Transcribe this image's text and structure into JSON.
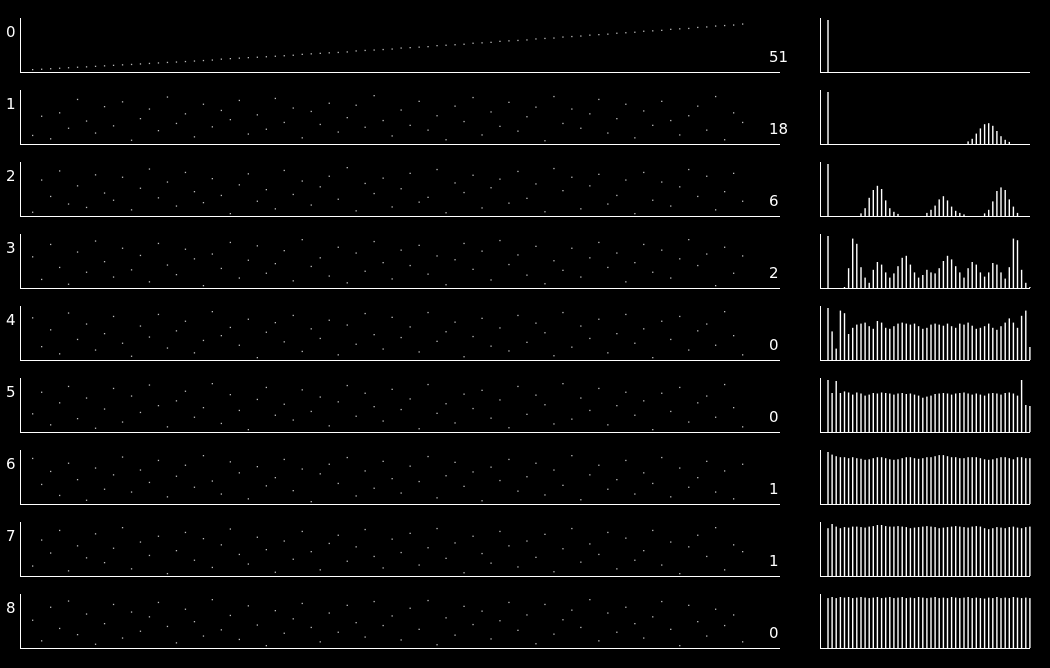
{
  "chart_data": {
    "type": "scatter",
    "description_free": true,
    "rows": [
      {
        "row_label": "0",
        "count_label": "51",
        "scatter": [
          0.02,
          0.03,
          0.04,
          0.05,
          0.06,
          0.07,
          0.08,
          0.09,
          0.1,
          0.11,
          0.12,
          0.13,
          0.14,
          0.15,
          0.16,
          0.17,
          0.18,
          0.19,
          0.2,
          0.21,
          0.22,
          0.24,
          0.25,
          0.26,
          0.27,
          0.28,
          0.29,
          0.3,
          0.31,
          0.32,
          0.34,
          0.35,
          0.36,
          0.37,
          0.38,
          0.39,
          0.41,
          0.42,
          0.43,
          0.44,
          0.45,
          0.47,
          0.48,
          0.49,
          0.5,
          0.52,
          0.53,
          0.54,
          0.55,
          0.57,
          0.58,
          0.59,
          0.61,
          0.62,
          0.63,
          0.64,
          0.66,
          0.67,
          0.68,
          0.7,
          0.71,
          0.72,
          0.74,
          0.75,
          0.76,
          0.78,
          0.79,
          0.8,
          0.82,
          0.83,
          0.84,
          0.86,
          0.87,
          0.88,
          0.9,
          0.91,
          0.93,
          0.94,
          0.95,
          0.97
        ],
        "histogram": [
          1.0,
          0,
          0,
          0,
          0,
          0,
          0,
          0,
          0,
          0,
          0,
          0,
          0,
          0,
          0,
          0,
          0,
          0,
          0,
          0,
          0,
          0,
          0,
          0,
          0,
          0,
          0,
          0,
          0,
          0,
          0,
          0,
          0,
          0,
          0,
          0,
          0,
          0,
          0,
          0,
          0,
          0,
          0,
          0,
          0,
          0,
          0,
          0,
          0,
          0
        ]
      },
      {
        "row_label": "1",
        "count_label": "18",
        "scatter": [
          0.15,
          0.55,
          0.08,
          0.62,
          0.3,
          0.9,
          0.45,
          0.2,
          0.75,
          0.35,
          0.85,
          0.05,
          0.5,
          0.7,
          0.25,
          0.95,
          0.4,
          0.6,
          0.12,
          0.8,
          0.33,
          0.67,
          0.48,
          0.88,
          0.18,
          0.58,
          0.28,
          0.92,
          0.42,
          0.72,
          0.1,
          0.65,
          0.38,
          0.82,
          0.22,
          0.52,
          0.78,
          0.32,
          0.98,
          0.46,
          0.14,
          0.68,
          0.36,
          0.86,
          0.26,
          0.56,
          0.06,
          0.76,
          0.44,
          0.94,
          0.16,
          0.64,
          0.34,
          0.84,
          0.24,
          0.54,
          0.74,
          0.04,
          0.96,
          0.4,
          0.7,
          0.3,
          0.6,
          0.9,
          0.2,
          0.5,
          0.8,
          0.1,
          0.66,
          0.36,
          0.86,
          0.46,
          0.16,
          0.56,
          0.76,
          0.26,
          0.96,
          0.06,
          0.62,
          0.42
        ],
        "histogram": [
          1.0,
          0,
          0,
          0,
          0,
          0,
          0,
          0,
          0,
          0,
          0,
          0,
          0,
          0,
          0,
          0,
          0,
          0,
          0,
          0,
          0,
          0,
          0,
          0,
          0,
          0,
          0,
          0,
          0,
          0,
          0,
          0,
          0,
          0,
          0.05,
          0.1,
          0.2,
          0.3,
          0.38,
          0.4,
          0.35,
          0.25,
          0.15,
          0.08,
          0.04,
          0,
          0,
          0,
          0,
          0
        ]
      },
      {
        "row_label": "2",
        "count_label": "6",
        "scatter": [
          0.05,
          0.72,
          0.38,
          0.91,
          0.22,
          0.6,
          0.15,
          0.83,
          0.45,
          0.3,
          0.78,
          0.1,
          0.55,
          0.95,
          0.35,
          0.68,
          0.18,
          0.88,
          0.48,
          0.25,
          0.75,
          0.4,
          0.02,
          0.62,
          0.85,
          0.28,
          0.52,
          0.12,
          0.92,
          0.42,
          0.7,
          0.2,
          0.58,
          0.8,
          0.32,
          0.98,
          0.08,
          0.65,
          0.44,
          0.76,
          0.16,
          0.54,
          0.86,
          0.26,
          0.36,
          0.94,
          0.04,
          0.66,
          0.46,
          0.82,
          0.14,
          0.56,
          0.74,
          0.24,
          0.9,
          0.34,
          0.64,
          0.06,
          0.96,
          0.5,
          0.78,
          0.12,
          0.6,
          0.84,
          0.22,
          0.4,
          0.72,
          0.02,
          0.88,
          0.3,
          0.68,
          0.18,
          0.58,
          0.94,
          0.38,
          0.8,
          0.1,
          0.48,
          0.86,
          0.28
        ],
        "histogram": [
          1.0,
          0,
          0,
          0,
          0,
          0,
          0,
          0,
          0.05,
          0.15,
          0.35,
          0.5,
          0.58,
          0.52,
          0.3,
          0.15,
          0.08,
          0.04,
          0,
          0,
          0,
          0,
          0,
          0,
          0.06,
          0.12,
          0.2,
          0.32,
          0.38,
          0.3,
          0.18,
          0.1,
          0.06,
          0.03,
          0,
          0,
          0,
          0,
          0.05,
          0.12,
          0.28,
          0.48,
          0.55,
          0.5,
          0.32,
          0.18,
          0.06,
          0,
          0,
          0
        ]
      },
      {
        "row_label": "3",
        "count_label": "2",
        "scatter": [
          0.62,
          0.15,
          0.88,
          0.4,
          0.05,
          0.72,
          0.3,
          0.95,
          0.52,
          0.2,
          0.8,
          0.35,
          0.65,
          0.1,
          0.9,
          0.45,
          0.25,
          0.78,
          0.58,
          0.02,
          0.68,
          0.38,
          0.92,
          0.18,
          0.55,
          0.85,
          0.28,
          0.48,
          0.75,
          0.12,
          0.98,
          0.42,
          0.6,
          0.22,
          0.82,
          0.08,
          0.7,
          0.32,
          0.94,
          0.5,
          0.16,
          0.76,
          0.44,
          0.86,
          0.26,
          0.64,
          0.04,
          0.56,
          0.9,
          0.36,
          0.74,
          0.14,
          0.96,
          0.46,
          0.66,
          0.24,
          0.84,
          0.06,
          0.54,
          0.34,
          0.8,
          0.2,
          0.6,
          0.92,
          0.4,
          0.7,
          0.1,
          0.5,
          0.88,
          0.3,
          0.76,
          0.18,
          0.58,
          0.98,
          0.44,
          0.68,
          0.02,
          0.82,
          0.28,
          0.64
        ],
        "histogram": [
          1.0,
          0,
          0,
          0,
          0.02,
          0.38,
          0.95,
          0.85,
          0.4,
          0.2,
          0.1,
          0.35,
          0.5,
          0.45,
          0.3,
          0.2,
          0.28,
          0.42,
          0.58,
          0.62,
          0.45,
          0.3,
          0.2,
          0.25,
          0.35,
          0.3,
          0.28,
          0.38,
          0.52,
          0.62,
          0.55,
          0.42,
          0.3,
          0.2,
          0.38,
          0.5,
          0.45,
          0.3,
          0.22,
          0.3,
          0.48,
          0.45,
          0.3,
          0.18,
          0.4,
          0.95,
          0.92,
          0.35,
          0.1,
          0.02
        ]
      },
      {
        "row_label": "4",
        "count_label": "0",
        "scatter": [
          0.85,
          0.25,
          0.6,
          0.1,
          0.95,
          0.4,
          0.72,
          0.18,
          0.52,
          0.88,
          0.32,
          0.05,
          0.68,
          0.45,
          0.92,
          0.22,
          0.58,
          0.78,
          0.12,
          0.38,
          0.98,
          0.48,
          0.65,
          0.28,
          0.82,
          0.02,
          0.55,
          0.75,
          0.35,
          0.9,
          0.15,
          0.62,
          0.42,
          0.8,
          0.08,
          0.7,
          0.3,
          0.94,
          0.5,
          0.2,
          0.86,
          0.44,
          0.66,
          0.14,
          0.96,
          0.36,
          0.56,
          0.76,
          0.04,
          0.46,
          0.84,
          0.26,
          0.64,
          0.16,
          0.9,
          0.34,
          0.74,
          0.54,
          0.06,
          0.96,
          0.24,
          0.68,
          0.42,
          0.82,
          0.12,
          0.52,
          0.92,
          0.32,
          0.62,
          0.02,
          0.78,
          0.4,
          0.88,
          0.18,
          0.58,
          0.72,
          0.28,
          0.98,
          0.48,
          0.08
        ],
        "histogram": [
          1.0,
          0.55,
          0.22,
          0.95,
          0.9,
          0.5,
          0.62,
          0.68,
          0.7,
          0.72,
          0.65,
          0.6,
          0.75,
          0.72,
          0.62,
          0.6,
          0.65,
          0.7,
          0.72,
          0.7,
          0.68,
          0.7,
          0.65,
          0.6,
          0.62,
          0.68,
          0.7,
          0.68,
          0.66,
          0.7,
          0.65,
          0.62,
          0.7,
          0.68,
          0.72,
          0.66,
          0.6,
          0.62,
          0.65,
          0.7,
          0.62,
          0.58,
          0.65,
          0.72,
          0.8,
          0.72,
          0.62,
          0.85,
          0.95,
          0.25
        ]
      },
      {
        "row_label": "5",
        "count_label": "0",
        "scatter": [
          0.35,
          0.8,
          0.12,
          0.58,
          0.92,
          0.25,
          0.68,
          0.05,
          0.45,
          0.88,
          0.18,
          0.72,
          0.38,
          0.95,
          0.52,
          0.08,
          0.62,
          0.82,
          0.28,
          0.48,
          0.98,
          0.15,
          0.75,
          0.42,
          0.02,
          0.65,
          0.9,
          0.32,
          0.55,
          0.22,
          0.85,
          0.4,
          0.7,
          0.1,
          0.6,
          0.94,
          0.3,
          0.78,
          0.5,
          0.2,
          0.86,
          0.44,
          0.66,
          0.04,
          0.96,
          0.36,
          0.56,
          0.16,
          0.76,
          0.46,
          0.84,
          0.26,
          0.64,
          0.06,
          0.92,
          0.34,
          0.74,
          0.54,
          0.14,
          0.98,
          0.24,
          0.68,
          0.42,
          0.88,
          0.12,
          0.52,
          0.8,
          0.32,
          0.62,
          0.02,
          0.78,
          0.4,
          0.9,
          0.18,
          0.58,
          0.72,
          0.28,
          0.96,
          0.48,
          0.08
        ],
        "histogram": [
          1.0,
          0.75,
          0.98,
          0.75,
          0.78,
          0.76,
          0.72,
          0.76,
          0.74,
          0.7,
          0.72,
          0.75,
          0.74,
          0.76,
          0.75,
          0.74,
          0.72,
          0.74,
          0.75,
          0.73,
          0.74,
          0.72,
          0.7,
          0.66,
          0.68,
          0.7,
          0.73,
          0.74,
          0.75,
          0.74,
          0.72,
          0.74,
          0.75,
          0.76,
          0.74,
          0.72,
          0.74,
          0.72,
          0.7,
          0.74,
          0.75,
          0.74,
          0.72,
          0.75,
          0.76,
          0.74,
          0.7,
          1.0,
          0.52,
          0.5
        ]
      },
      {
        "row_label": "6",
        "count_label": "1",
        "scatter": [
          0.92,
          0.38,
          0.65,
          0.15,
          0.82,
          0.48,
          0.05,
          0.72,
          0.28,
          0.58,
          0.95,
          0.22,
          0.68,
          0.42,
          0.88,
          0.12,
          0.55,
          0.78,
          0.32,
          0.98,
          0.45,
          0.18,
          0.85,
          0.62,
          0.08,
          0.75,
          0.35,
          0.52,
          0.9,
          0.25,
          0.7,
          0.02,
          0.6,
          0.8,
          0.4,
          0.94,
          0.14,
          0.66,
          0.3,
          0.86,
          0.5,
          0.2,
          0.76,
          0.44,
          0.96,
          0.1,
          0.56,
          0.84,
          0.34,
          0.64,
          0.04,
          0.74,
          0.46,
          0.9,
          0.24,
          0.54,
          0.82,
          0.16,
          0.68,
          0.36,
          0.98,
          0.06,
          0.58,
          0.78,
          0.28,
          0.48,
          0.88,
          0.18,
          0.62,
          0.4,
          0.94,
          0.12,
          0.72,
          0.32,
          0.52,
          0.86,
          0.22,
          0.66,
          0.08,
          0.8
        ],
        "histogram": [
          1.0,
          0.95,
          0.92,
          0.9,
          0.9,
          0.88,
          0.9,
          0.88,
          0.87,
          0.85,
          0.86,
          0.88,
          0.9,
          0.9,
          0.88,
          0.86,
          0.85,
          0.86,
          0.88,
          0.9,
          0.9,
          0.88,
          0.87,
          0.88,
          0.9,
          0.9,
          0.92,
          0.94,
          0.94,
          0.92,
          0.9,
          0.9,
          0.88,
          0.88,
          0.9,
          0.9,
          0.9,
          0.88,
          0.86,
          0.85,
          0.86,
          0.88,
          0.9,
          0.9,
          0.88,
          0.86,
          0.9,
          0.9,
          0.88,
          0.88
        ]
      },
      {
        "row_label": "7",
        "count_label": "1",
        "scatter": [
          0.18,
          0.72,
          0.45,
          0.92,
          0.08,
          0.6,
          0.35,
          0.85,
          0.25,
          0.55,
          0.98,
          0.12,
          0.68,
          0.4,
          0.8,
          0.02,
          0.5,
          0.88,
          0.3,
          0.75,
          0.15,
          0.62,
          0.95,
          0.42,
          0.22,
          0.78,
          0.52,
          0.05,
          0.7,
          0.32,
          0.9,
          0.48,
          0.1,
          0.65,
          0.82,
          0.28,
          0.58,
          0.94,
          0.38,
          0.14,
          0.74,
          0.46,
          0.86,
          0.2,
          0.56,
          0.96,
          0.34,
          0.66,
          0.04,
          0.8,
          0.44,
          0.24,
          0.9,
          0.6,
          0.16,
          0.7,
          0.36,
          0.84,
          0.06,
          0.54,
          0.96,
          0.26,
          0.64,
          0.42,
          0.88,
          0.12,
          0.76,
          0.3,
          0.5,
          0.92,
          0.2,
          0.68,
          0.02,
          0.58,
          0.82,
          0.38,
          0.98,
          0.1,
          0.62,
          0.48
        ],
        "histogram": [
          0.92,
          1.0,
          0.95,
          0.92,
          0.94,
          0.93,
          0.95,
          0.95,
          0.94,
          0.93,
          0.95,
          0.96,
          0.98,
          0.98,
          0.96,
          0.95,
          0.95,
          0.96,
          0.95,
          0.94,
          0.92,
          0.93,
          0.94,
          0.95,
          0.96,
          0.95,
          0.94,
          0.92,
          0.93,
          0.94,
          0.95,
          0.96,
          0.95,
          0.94,
          0.93,
          0.95,
          0.96,
          0.95,
          0.92,
          0.9,
          0.92,
          0.94,
          0.93,
          0.92,
          0.94,
          0.95,
          0.93,
          0.92,
          0.94,
          0.95
        ]
      },
      {
        "row_label": "8",
        "count_label": "0",
        "scatter": [
          0.55,
          0.12,
          0.82,
          0.38,
          0.95,
          0.25,
          0.68,
          0.05,
          0.48,
          0.88,
          0.18,
          0.72,
          0.32,
          0.62,
          0.92,
          0.42,
          0.08,
          0.78,
          0.52,
          0.22,
          0.98,
          0.35,
          0.65,
          0.15,
          0.85,
          0.45,
          0.02,
          0.75,
          0.28,
          0.58,
          0.9,
          0.4,
          0.1,
          0.7,
          0.3,
          0.86,
          0.5,
          0.2,
          0.94,
          0.44,
          0.64,
          0.14,
          0.8,
          0.36,
          0.96,
          0.04,
          0.6,
          0.24,
          0.84,
          0.46,
          0.74,
          0.16,
          0.54,
          0.92,
          0.34,
          0.66,
          0.06,
          0.88,
          0.26,
          0.56,
          0.76,
          0.4,
          0.98,
          0.12,
          0.7,
          0.3,
          0.82,
          0.48,
          0.18,
          0.62,
          0.94,
          0.36,
          0.02,
          0.86,
          0.52,
          0.22,
          0.78,
          0.44,
          0.66,
          0.1
        ],
        "histogram": [
          0.96,
          0.98,
          0.96,
          0.98,
          0.97,
          0.98,
          0.96,
          0.97,
          0.98,
          0.97,
          0.96,
          0.97,
          0.98,
          0.96,
          0.97,
          0.98,
          0.96,
          0.97,
          0.98,
          0.96,
          0.97,
          0.96,
          0.98,
          0.97,
          0.96,
          0.97,
          0.98,
          0.96,
          0.97,
          0.96,
          0.98,
          0.97,
          0.96,
          0.97,
          0.98,
          0.96,
          0.97,
          0.96,
          0.95,
          0.97,
          0.96,
          0.98,
          0.96,
          0.97,
          0.96,
          0.98,
          0.97,
          0.96,
          0.97,
          0.96
        ]
      }
    ]
  }
}
